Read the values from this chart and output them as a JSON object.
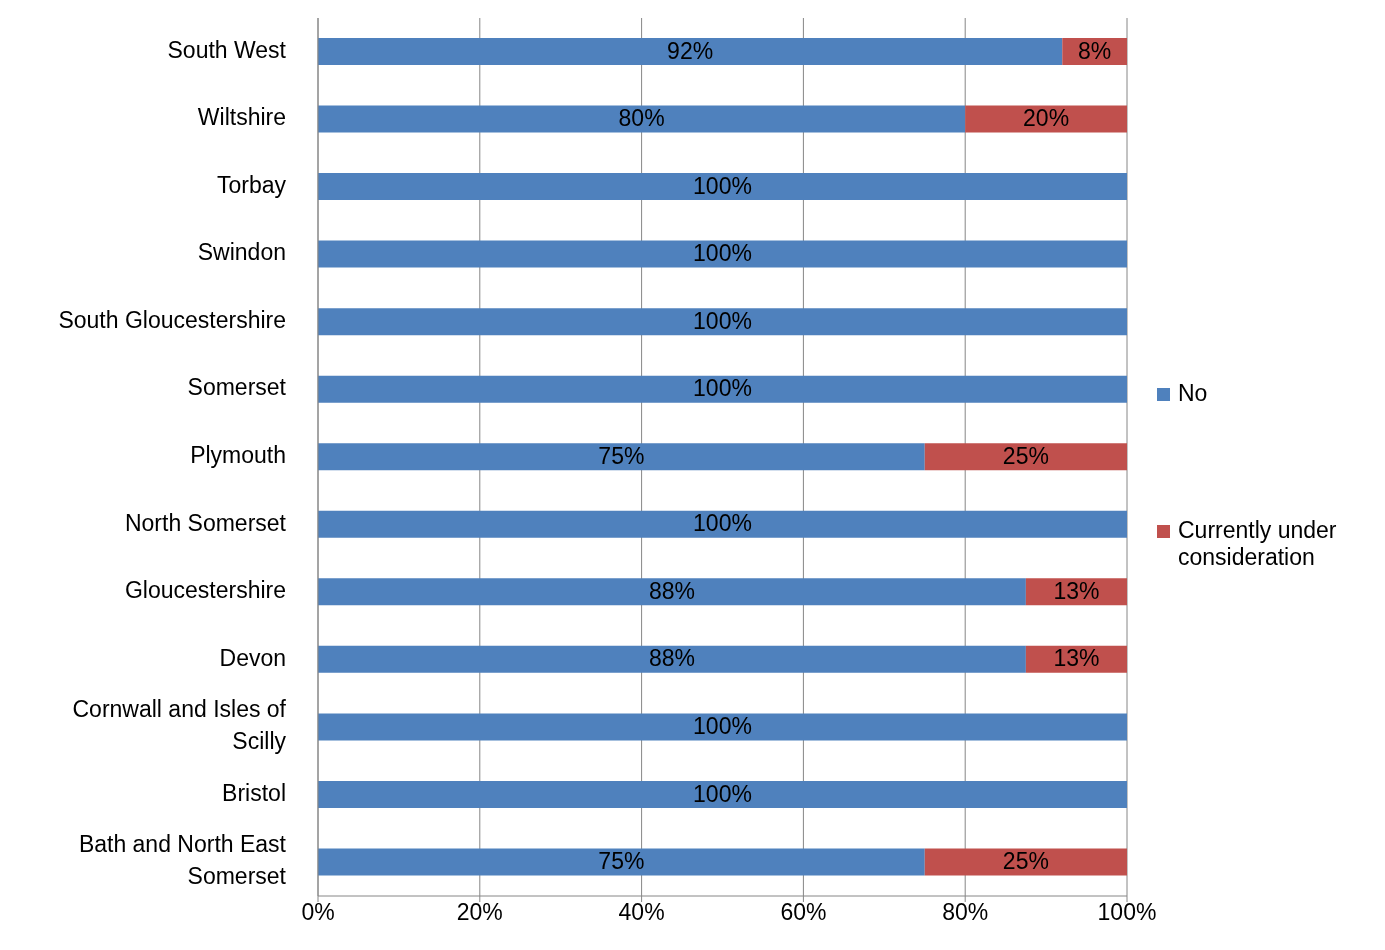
{
  "chart_data": {
    "type": "bar",
    "orientation": "horizontal",
    "stacked": true,
    "categories": [
      "South West",
      "Wiltshire",
      "Torbay",
      "Swindon",
      "South Gloucestershire",
      "Somerset",
      "Plymouth",
      "North Somerset",
      "Gloucestershire",
      "Devon",
      "Cornwall and Isles of Scilly",
      "Bristol",
      "Bath and North East Somerset"
    ],
    "series": [
      {
        "name": "No",
        "color": "#4f81bd",
        "values": [
          92,
          80,
          100,
          100,
          100,
          100,
          75,
          100,
          87.5,
          87.5,
          100,
          100,
          75
        ],
        "value_labels": [
          "92%",
          "80%",
          "100%",
          "100%",
          "100%",
          "100%",
          "75%",
          "100%",
          "88%",
          "88%",
          "100%",
          "100%",
          "75%"
        ]
      },
      {
        "name": "Currently under consideration",
        "color": "#c0504d",
        "values": [
          8,
          20,
          0,
          0,
          0,
          0,
          25,
          0,
          12.5,
          12.5,
          0,
          0,
          25
        ],
        "value_labels": [
          "8%",
          "20%",
          null,
          null,
          null,
          null,
          "25%",
          null,
          "13%",
          "13%",
          null,
          null,
          "25%"
        ]
      }
    ],
    "xlim": [
      0,
      100
    ],
    "xticks": [
      {
        "value": 0,
        "label": "0%"
      },
      {
        "value": 20,
        "label": "20%"
      },
      {
        "value": 40,
        "label": "40%"
      },
      {
        "value": 60,
        "label": "60%"
      },
      {
        "value": 80,
        "label": "80%"
      },
      {
        "value": 100,
        "label": "100%"
      }
    ],
    "grid": "x",
    "legend": "right"
  }
}
